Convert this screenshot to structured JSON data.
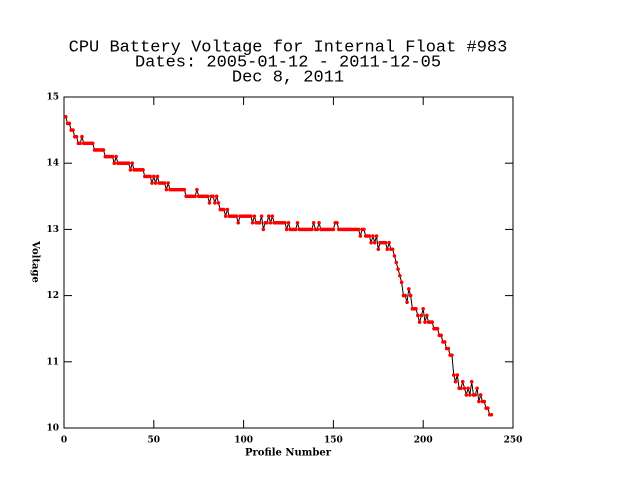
{
  "chart_data": {
    "type": "line",
    "title": [
      "CPU Battery Voltage for Internal Float #983",
      "Dates:  2005-01-12 -  2011-12-05",
      "Dec  8, 2011"
    ],
    "xlabel": "Profile Number",
    "ylabel": "Voltage",
    "xlim": [
      0,
      250
    ],
    "xticks": [
      0,
      50,
      100,
      150,
      200,
      250
    ],
    "ylim": [
      10,
      15
    ],
    "yticks": [
      10,
      11,
      12,
      13,
      14,
      15
    ],
    "line_color": "#000000",
    "marker_color": "#ff0000",
    "x": [
      1,
      2,
      3,
      4,
      5,
      6,
      7,
      8,
      9,
      10,
      11,
      12,
      13,
      14,
      15,
      16,
      17,
      18,
      19,
      20,
      21,
      22,
      23,
      24,
      25,
      26,
      27,
      28,
      29,
      30,
      31,
      32,
      33,
      34,
      35,
      36,
      37,
      38,
      39,
      40,
      41,
      42,
      43,
      44,
      45,
      46,
      47,
      48,
      49,
      50,
      51,
      52,
      53,
      54,
      55,
      56,
      57,
      58,
      59,
      60,
      61,
      62,
      63,
      64,
      65,
      66,
      67,
      68,
      69,
      70,
      71,
      72,
      73,
      74,
      75,
      76,
      77,
      78,
      79,
      80,
      81,
      82,
      83,
      84,
      85,
      86,
      87,
      88,
      89,
      90,
      91,
      92,
      93,
      94,
      95,
      96,
      97,
      98,
      99,
      100,
      101,
      102,
      103,
      104,
      105,
      106,
      107,
      108,
      109,
      110,
      111,
      112,
      113,
      114,
      115,
      116,
      117,
      118,
      119,
      120,
      121,
      122,
      123,
      124,
      125,
      126,
      127,
      128,
      129,
      130,
      131,
      132,
      133,
      134,
      135,
      136,
      137,
      138,
      139,
      140,
      141,
      142,
      143,
      144,
      145,
      146,
      147,
      148,
      149,
      150,
      151,
      152,
      153,
      154,
      155,
      156,
      157,
      158,
      159,
      160,
      161,
      162,
      163,
      164,
      165,
      166,
      167,
      168,
      169,
      170,
      171,
      172,
      173,
      174,
      175,
      176,
      177,
      178,
      179,
      180,
      181,
      182,
      183,
      184,
      185,
      186,
      187,
      188,
      189,
      190,
      191,
      192,
      193,
      194,
      195,
      196,
      197,
      198,
      199,
      200,
      201,
      202,
      203,
      204,
      205,
      206,
      207,
      208,
      209,
      210,
      211,
      212,
      213,
      214,
      215,
      216,
      217,
      218,
      219,
      220,
      221,
      222,
      223,
      224,
      225,
      226,
      227,
      228,
      229,
      230,
      231,
      232,
      233,
      234,
      235,
      236,
      237,
      238
    ],
    "values": [
      14.7,
      14.6,
      14.6,
      14.5,
      14.5,
      14.4,
      14.4,
      14.3,
      14.3,
      14.4,
      14.3,
      14.3,
      14.3,
      14.3,
      14.3,
      14.3,
      14.2,
      14.2,
      14.2,
      14.2,
      14.2,
      14.2,
      14.1,
      14.1,
      14.1,
      14.1,
      14.1,
      14.0,
      14.1,
      14.0,
      14.0,
      14.0,
      14.0,
      14.0,
      14.0,
      14.0,
      13.9,
      14.0,
      13.9,
      13.9,
      13.9,
      13.9,
      13.9,
      13.9,
      13.8,
      13.8,
      13.8,
      13.8,
      13.7,
      13.8,
      13.7,
      13.8,
      13.7,
      13.7,
      13.7,
      13.7,
      13.6,
      13.7,
      13.6,
      13.6,
      13.6,
      13.6,
      13.6,
      13.6,
      13.6,
      13.6,
      13.6,
      13.5,
      13.5,
      13.5,
      13.5,
      13.5,
      13.5,
      13.6,
      13.5,
      13.5,
      13.5,
      13.5,
      13.5,
      13.5,
      13.4,
      13.5,
      13.5,
      13.4,
      13.5,
      13.4,
      13.3,
      13.3,
      13.3,
      13.2,
      13.3,
      13.2,
      13.2,
      13.2,
      13.2,
      13.2,
      13.1,
      13.2,
      13.2,
      13.2,
      13.2,
      13.2,
      13.2,
      13.2,
      13.1,
      13.2,
      13.1,
      13.1,
      13.1,
      13.2,
      13.0,
      13.1,
      13.1,
      13.2,
      13.1,
      13.2,
      13.1,
      13.1,
      13.1,
      13.1,
      13.1,
      13.1,
      13.1,
      13.0,
      13.1,
      13.0,
      13.0,
      13.0,
      13.0,
      13.1,
      13.0,
      13.0,
      13.0,
      13.0,
      13.0,
      13.0,
      13.0,
      13.0,
      13.1,
      13.0,
      13.0,
      13.1,
      13.0,
      13.0,
      13.0,
      13.0,
      13.0,
      13.0,
      13.0,
      13.0,
      13.1,
      13.1,
      13.0,
      13.0,
      13.0,
      13.0,
      13.0,
      13.0,
      13.0,
      13.0,
      13.0,
      13.0,
      13.0,
      13.0,
      12.9,
      13.0,
      13.0,
      12.9,
      12.9,
      12.9,
      12.8,
      12.9,
      12.8,
      12.9,
      12.7,
      12.8,
      12.8,
      12.8,
      12.8,
      12.7,
      12.8,
      12.7,
      12.7,
      12.6,
      12.5,
      12.4,
      12.3,
      12.2,
      12.0,
      12.0,
      11.9,
      12.1,
      12.0,
      11.8,
      11.8,
      11.8,
      11.7,
      11.6,
      11.7,
      11.8,
      11.6,
      11.7,
      11.6,
      11.6,
      11.6,
      11.5,
      11.5,
      11.5,
      11.4,
      11.4,
      11.3,
      11.3,
      11.2,
      11.2,
      11.1,
      11.1,
      10.8,
      10.7,
      10.8,
      10.6,
      10.6,
      10.7,
      10.6,
      10.5,
      10.6,
      10.5,
      10.7,
      10.5,
      10.5,
      10.6,
      10.4,
      10.5,
      10.4,
      10.4,
      10.3,
      10.3,
      10.2,
      10.2
    ]
  }
}
